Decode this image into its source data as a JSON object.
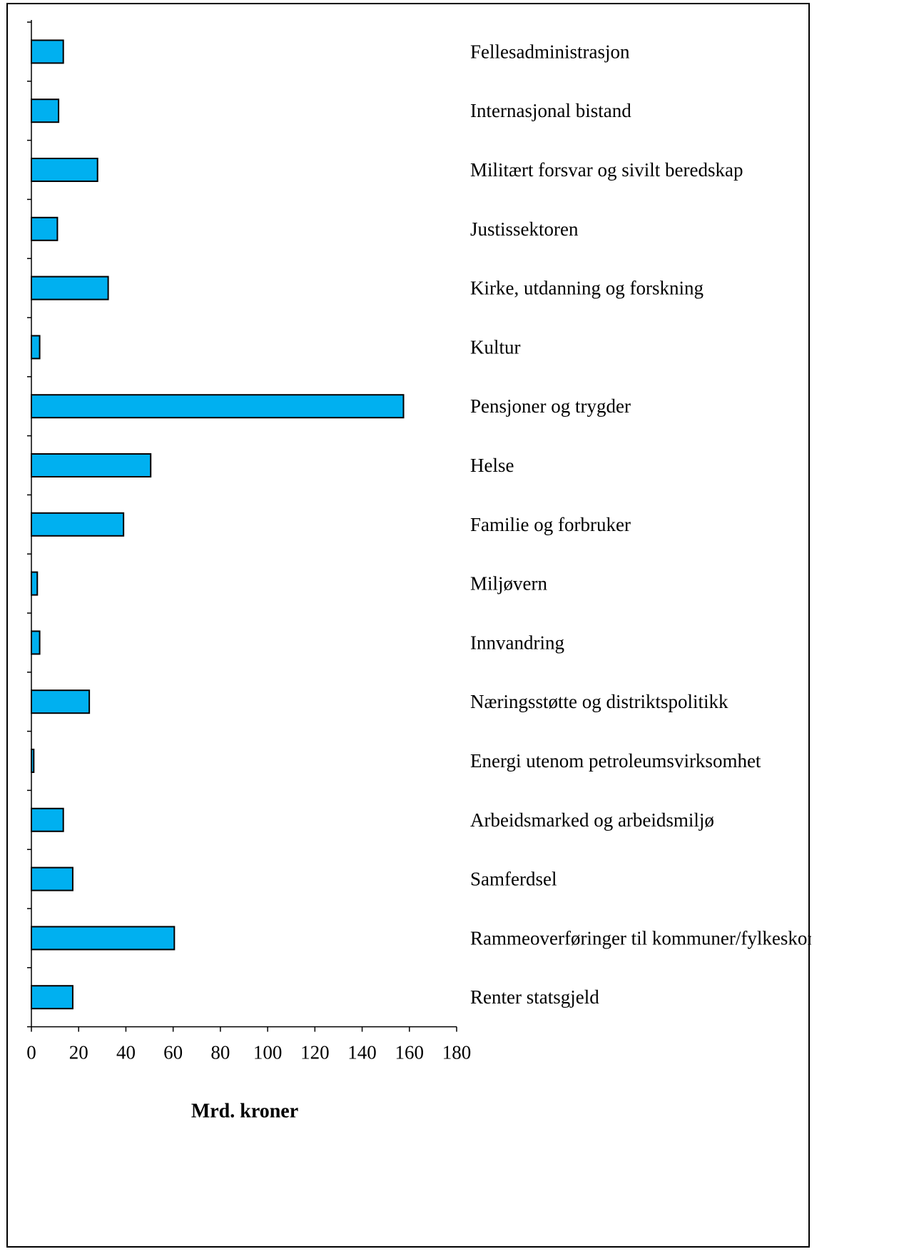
{
  "chart_data": {
    "type": "bar",
    "orientation": "horizontal",
    "categories": [
      "Fellesadministrasjon",
      "Internasjonal bistand",
      "Militært forsvar og sivilt beredskap",
      "Justissektoren",
      "Kirke, utdanning og forskning",
      "Kultur",
      "Pensjoner og trygder",
      "Helse",
      "Familie og forbruker",
      "Miljøvern",
      "Innvandring",
      "Næringsstøtte og distriktspolitikk",
      "Energi utenom petroleumsvirksomhet",
      "Arbeidsmarked og arbeidsmiljø",
      "Samferdsel",
      "Rammeoverføringer til kommuner/fylkeskommuner",
      "Renter statsgjeld"
    ],
    "values": [
      13.5,
      11.5,
      28,
      11,
      32.5,
      3.5,
      157.5,
      50.5,
      39,
      2.5,
      3.5,
      24.5,
      1,
      13.5,
      17.5,
      60.5,
      17.5
    ],
    "xlabel": "Mrd. kroner",
    "ylabel": "",
    "xlim": [
      0,
      180
    ],
    "xticks": [
      "0",
      "20",
      "40",
      "60",
      "80",
      "100",
      "120",
      "140",
      "160",
      "180"
    ],
    "grid": false,
    "legend": "none",
    "bar_color": "#00b0f0",
    "bar_edge_color": "#000000"
  }
}
